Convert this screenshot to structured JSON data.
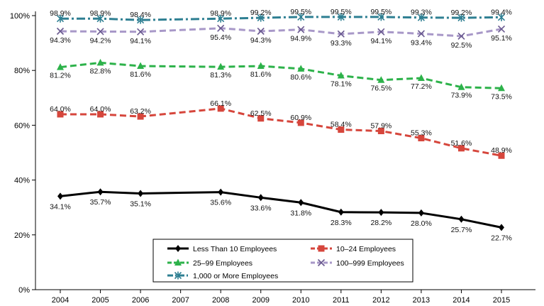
{
  "chart_data": {
    "type": "line",
    "x": [
      2004,
      2005,
      2006,
      2008,
      2009,
      2010,
      2011,
      2012,
      2013,
      2014,
      2015
    ],
    "x_ticks": [
      "2004",
      "2005",
      "2006",
      "2007",
      "2008",
      "2009",
      "2010",
      "2011",
      "2012",
      "2013",
      "2014",
      "2015"
    ],
    "y_ticks": [
      "0%",
      "20%",
      "40%",
      "60%",
      "80%",
      "100%"
    ],
    "ylim": [
      0,
      100
    ],
    "legend_position": "bottom-center",
    "grid": false,
    "series": [
      {
        "name": "Less Than 10 Employees",
        "color": "#000000",
        "marker": "diamond",
        "dash": "solid",
        "values": [
          34.1,
          35.7,
          35.1,
          35.6,
          33.6,
          31.8,
          28.3,
          28.2,
          28.0,
          25.7,
          22.7
        ],
        "labels": [
          "34.1%",
          "35.7%",
          "35.1%",
          "35.6%",
          "33.6%",
          "31.8%",
          "28.3%",
          "28.2%",
          "28.0%",
          "25.7%",
          "22.7%"
        ]
      },
      {
        "name": "10–24 Employees",
        "color": "#d6463c",
        "marker": "square",
        "dash": "dashed",
        "values": [
          64.0,
          64.0,
          63.2,
          66.1,
          62.5,
          60.9,
          58.4,
          57.9,
          55.3,
          51.6,
          48.9
        ],
        "labels": [
          "64.0%",
          "64.0%",
          "63.2%",
          "66.1%",
          "62.5%",
          "60.9%",
          "58.4%",
          "57.9%",
          "55.3%",
          "51.6%",
          "48.9%"
        ]
      },
      {
        "name": "25–99 Employees",
        "color": "#2db24a",
        "marker": "triangle",
        "dash": "dashed",
        "values": [
          81.2,
          82.8,
          81.6,
          81.3,
          81.6,
          80.6,
          78.1,
          76.5,
          77.2,
          73.9,
          73.5
        ],
        "labels": [
          "81.2%",
          "82.8%",
          "81.6%",
          "81.3%",
          "81.6%",
          "80.6%",
          "78.1%",
          "76.5%",
          "77.2%",
          "73.9%",
          "73.5%"
        ]
      },
      {
        "name": "100–999 Employees",
        "color": "#a898c8",
        "marker": "x",
        "dash": "dashed",
        "values": [
          94.3,
          94.2,
          94.1,
          95.4,
          94.3,
          94.9,
          93.3,
          94.1,
          93.4,
          92.5,
          95.1
        ],
        "labels": [
          "94.3%",
          "94.2%",
          "94.1%",
          "95.4%",
          "94.3%",
          "94.9%",
          "93.3%",
          "94.1%",
          "93.4%",
          "92.5%",
          "95.1%"
        ]
      },
      {
        "name": "1,000 or More Employees",
        "color": "#2e7f92",
        "marker": "asterisk",
        "dash": "dashdot",
        "values": [
          98.9,
          98.9,
          98.4,
          98.9,
          99.2,
          99.5,
          99.5,
          99.5,
          99.3,
          99.2,
          99.4
        ],
        "labels": [
          "98.9%",
          "98.9%",
          "98.4%",
          "98.9%",
          "99.2%",
          "99.5%",
          "99.5%",
          "99.5%",
          "99.3%",
          "99.2%",
          "99.4%"
        ]
      }
    ]
  }
}
